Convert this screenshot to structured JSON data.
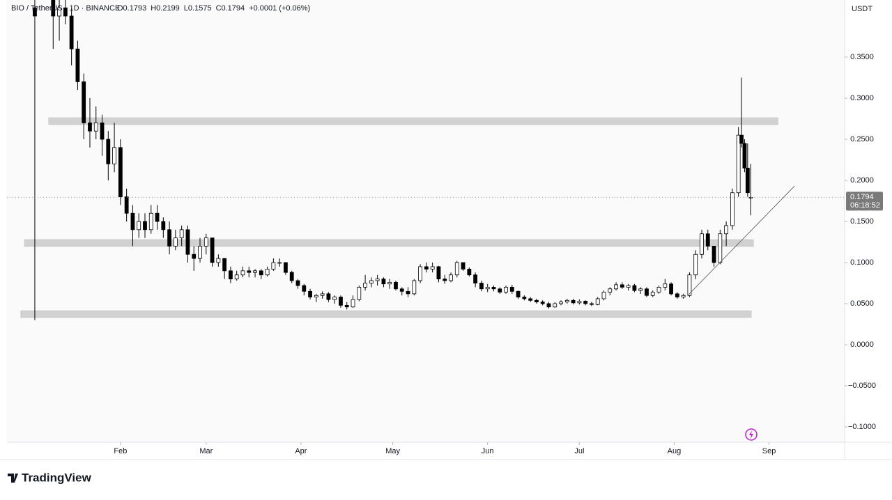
{
  "chart_data": {
    "type": "candlestick",
    "symbol": "BIO / TetherUS · 1D · BINANCE",
    "ohlc_header": [
      "O0.1793",
      "H0.2199",
      "L0.1575",
      "C0.1794",
      "+0.0001 (+0.06%)"
    ],
    "currency": "USDT",
    "countdown": "06:18:52",
    "brand": "TradingView",
    "up_color": "#ffffff",
    "down_color": "#000000",
    "x": [
      4,
      10,
      12,
      14,
      16,
      18,
      20,
      22,
      24,
      26,
      28,
      30,
      32,
      34,
      36,
      38,
      40,
      42,
      44,
      46,
      48,
      50,
      52,
      54,
      56,
      58,
      60,
      62,
      64,
      66,
      68,
      70,
      72,
      74,
      76,
      78,
      80,
      82,
      84,
      86,
      88,
      90,
      92,
      94,
      96,
      98,
      100,
      102,
      104,
      106,
      108,
      110,
      112,
      114,
      116,
      118,
      120,
      122,
      124,
      126,
      128,
      130,
      132,
      134,
      136,
      138,
      140,
      142,
      144,
      146,
      148,
      150,
      152,
      154,
      156,
      158,
      160,
      162,
      164,
      166,
      168,
      170,
      172,
      174,
      176,
      178,
      180,
      182,
      184,
      186,
      188,
      190,
      192,
      194,
      196,
      198,
      200,
      202,
      204,
      206,
      208,
      210,
      212,
      214,
      216,
      218,
      220,
      222,
      224,
      226,
      228,
      230,
      232,
      234,
      235,
      236,
      237,
      238
    ],
    "open": [
      0.41,
      0.42,
      0.4,
      0.41,
      0.4,
      0.36,
      0.32,
      0.27,
      0.26,
      0.27,
      0.25,
      0.22,
      0.24,
      0.18,
      0.16,
      0.14,
      0.15,
      0.14,
      0.16,
      0.15,
      0.14,
      0.12,
      0.13,
      0.14,
      0.11,
      0.105,
      0.12,
      0.13,
      0.1,
      0.105,
      0.09,
      0.08,
      0.085,
      0.09,
      0.088,
      0.09,
      0.085,
      0.092,
      0.1,
      0.1,
      0.088,
      0.078,
      0.072,
      0.065,
      0.058,
      0.06,
      0.062,
      0.055,
      0.058,
      0.048,
      0.046,
      0.055,
      0.07,
      0.075,
      0.078,
      0.08,
      0.074,
      0.076,
      0.068,
      0.065,
      0.062,
      0.078,
      0.095,
      0.092,
      0.095,
      0.08,
      0.078,
      0.085,
      0.1,
      0.092,
      0.085,
      0.075,
      0.068,
      0.07,
      0.068,
      0.064,
      0.07,
      0.065,
      0.058,
      0.056,
      0.054,
      0.052,
      0.05,
      0.046,
      0.05,
      0.052,
      0.054,
      0.051,
      0.053,
      0.05,
      0.049,
      0.056,
      0.064,
      0.068,
      0.073,
      0.07,
      0.072,
      0.066,
      0.068,
      0.06,
      0.064,
      0.07,
      0.074,
      0.062,
      0.058,
      0.06,
      0.085,
      0.11,
      0.135,
      0.12,
      0.1,
      0.135,
      0.145,
      0.185,
      0.255,
      0.245,
      0.215,
      0.1793
    ],
    "high": [
      0.42,
      0.42,
      0.42,
      0.42,
      0.41,
      0.37,
      0.33,
      0.3,
      0.29,
      0.28,
      0.26,
      0.27,
      0.25,
      0.19,
      0.17,
      0.16,
      0.16,
      0.17,
      0.17,
      0.155,
      0.15,
      0.14,
      0.145,
      0.145,
      0.12,
      0.13,
      0.135,
      0.13,
      0.11,
      0.105,
      0.095,
      0.09,
      0.095,
      0.095,
      0.092,
      0.092,
      0.095,
      0.105,
      0.105,
      0.1,
      0.09,
      0.08,
      0.074,
      0.068,
      0.062,
      0.065,
      0.064,
      0.06,
      0.06,
      0.052,
      0.06,
      0.072,
      0.085,
      0.082,
      0.085,
      0.082,
      0.08,
      0.078,
      0.07,
      0.07,
      0.08,
      0.098,
      0.1,
      0.1,
      0.096,
      0.085,
      0.088,
      0.102,
      0.1,
      0.094,
      0.088,
      0.078,
      0.074,
      0.072,
      0.07,
      0.072,
      0.073,
      0.066,
      0.06,
      0.058,
      0.056,
      0.054,
      0.052,
      0.052,
      0.054,
      0.056,
      0.056,
      0.055,
      0.054,
      0.052,
      0.058,
      0.066,
      0.07,
      0.076,
      0.076,
      0.074,
      0.074,
      0.07,
      0.07,
      0.066,
      0.072,
      0.08,
      0.076,
      0.064,
      0.062,
      0.088,
      0.115,
      0.14,
      0.14,
      0.12,
      0.14,
      0.15,
      0.19,
      0.265,
      0.325,
      0.25,
      0.245,
      0.2199
    ],
    "low": [
      0.03,
      0.36,
      0.37,
      0.39,
      0.34,
      0.31,
      0.25,
      0.24,
      0.25,
      0.23,
      0.2,
      0.21,
      0.17,
      0.15,
      0.12,
      0.13,
      0.13,
      0.135,
      0.14,
      0.13,
      0.11,
      0.115,
      0.12,
      0.1,
      0.09,
      0.1,
      0.11,
      0.095,
      0.095,
      0.08,
      0.075,
      0.078,
      0.082,
      0.082,
      0.082,
      0.08,
      0.083,
      0.09,
      0.095,
      0.085,
      0.075,
      0.068,
      0.06,
      0.055,
      0.052,
      0.056,
      0.052,
      0.05,
      0.045,
      0.043,
      0.045,
      0.053,
      0.066,
      0.07,
      0.072,
      0.07,
      0.068,
      0.066,
      0.06,
      0.058,
      0.06,
      0.075,
      0.088,
      0.088,
      0.076,
      0.074,
      0.076,
      0.082,
      0.09,
      0.083,
      0.07,
      0.065,
      0.064,
      0.065,
      0.062,
      0.062,
      0.062,
      0.056,
      0.054,
      0.052,
      0.05,
      0.048,
      0.044,
      0.045,
      0.048,
      0.05,
      0.049,
      0.049,
      0.048,
      0.047,
      0.048,
      0.054,
      0.06,
      0.066,
      0.068,
      0.066,
      0.064,
      0.062,
      0.058,
      0.058,
      0.062,
      0.066,
      0.06,
      0.056,
      0.056,
      0.058,
      0.08,
      0.105,
      0.115,
      0.095,
      0.098,
      0.12,
      0.14,
      0.18,
      0.24,
      0.21,
      0.18,
      0.1575
    ],
    "close": [
      0.4,
      0.4,
      0.41,
      0.4,
      0.36,
      0.32,
      0.27,
      0.26,
      0.27,
      0.25,
      0.22,
      0.24,
      0.18,
      0.16,
      0.14,
      0.15,
      0.14,
      0.16,
      0.15,
      0.14,
      0.12,
      0.13,
      0.14,
      0.11,
      0.105,
      0.12,
      0.13,
      0.1,
      0.105,
      0.09,
      0.08,
      0.085,
      0.09,
      0.088,
      0.09,
      0.085,
      0.092,
      0.1,
      0.1,
      0.088,
      0.078,
      0.072,
      0.065,
      0.058,
      0.06,
      0.062,
      0.055,
      0.058,
      0.048,
      0.046,
      0.055,
      0.07,
      0.075,
      0.078,
      0.08,
      0.074,
      0.076,
      0.068,
      0.065,
      0.062,
      0.078,
      0.095,
      0.092,
      0.095,
      0.08,
      0.078,
      0.085,
      0.1,
      0.092,
      0.085,
      0.075,
      0.068,
      0.07,
      0.068,
      0.064,
      0.07,
      0.065,
      0.058,
      0.056,
      0.054,
      0.052,
      0.05,
      0.046,
      0.05,
      0.052,
      0.054,
      0.051,
      0.053,
      0.05,
      0.049,
      0.056,
      0.064,
      0.068,
      0.073,
      0.07,
      0.072,
      0.066,
      0.068,
      0.06,
      0.064,
      0.07,
      0.074,
      0.062,
      0.058,
      0.06,
      0.085,
      0.11,
      0.135,
      0.12,
      0.1,
      0.135,
      0.145,
      0.185,
      0.255,
      0.245,
      0.215,
      0.185,
      0.1794
    ],
    "last_price": 0.1794,
    "zones": [
      {
        "low": 0.2678,
        "high": 0.2763,
        "start": 8.5,
        "end": 246.9
      },
      {
        "low": 0.1195,
        "high": 0.128,
        "start": 0.6,
        "end": 238.9
      },
      {
        "low": 0.033,
        "high": 0.0415,
        "start": -0.6,
        "end": 238.2
      }
    ],
    "trendline": {
      "x": [
        217.7,
        252.3
      ],
      "y": [
        0.061,
        0.193
      ]
    },
    "xlim": [
      -5.1,
      268.7
    ],
    "xticks": [
      {
        "value": 32,
        "label": "Feb"
      },
      {
        "value": 60,
        "label": "Mar"
      },
      {
        "value": 91,
        "label": "Apr"
      },
      {
        "value": 121,
        "label": "May"
      },
      {
        "value": 152,
        "label": "Jun"
      },
      {
        "value": 182,
        "label": "Jul"
      },
      {
        "value": 213,
        "label": "Aug"
      },
      {
        "value": 244,
        "label": "Sep"
      }
    ],
    "ylim": [
      -0.1186,
      0.4195
    ],
    "yticks": [
      {
        "value": -0.1,
        "label": "−0.1000"
      },
      {
        "value": -0.05,
        "label": "−0.0500"
      },
      {
        "value": 0,
        "label": "0.0000"
      },
      {
        "value": 0.05,
        "label": "0.0500"
      },
      {
        "value": 0.1,
        "label": "0.1000"
      },
      {
        "value": 0.15,
        "label": "0.1500"
      },
      {
        "value": 0.2,
        "label": "0.2000"
      },
      {
        "value": 0.25,
        "label": "0.2500"
      },
      {
        "value": 0.3,
        "label": "0.3000"
      },
      {
        "value": 0.35,
        "label": "0.3500"
      }
    ]
  }
}
